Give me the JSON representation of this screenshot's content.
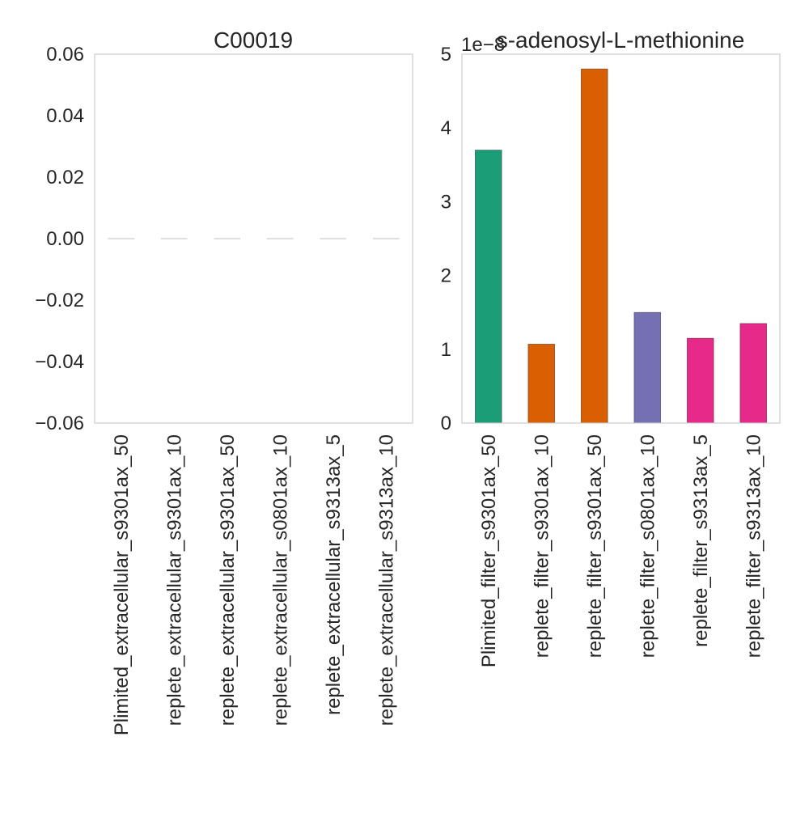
{
  "chart_data": [
    {
      "type": "bar",
      "title": "C00019",
      "categories": [
        "Plimited_extracellular_s9301ax_50",
        "replete_extracellular_s9301ax_10",
        "replete_extracellular_s9301ax_50",
        "replete_extracellular_s0801ax_10",
        "replete_extracellular_s9313ax_5",
        "replete_extracellular_s9313ax_10"
      ],
      "values": [
        0,
        0,
        0,
        0,
        0,
        0
      ],
      "ylim": [
        -0.06,
        0.06
      ],
      "yticks": [
        "0.06",
        "0.04",
        "0.02",
        "0.00",
        "−0.02",
        "−0.04",
        "−0.06"
      ],
      "ytick_values": [
        0.06,
        0.04,
        0.02,
        0.0,
        -0.02,
        -0.04,
        -0.06
      ],
      "xlabel": "",
      "ylabel": "",
      "grid": false,
      "bar_color": "#cccccc"
    },
    {
      "type": "bar",
      "title": "s-adenosyl-L-methionine",
      "offset_label": "1e−8",
      "categories": [
        "Plimited_filter_s9301ax_50",
        "replete_filter_s9301ax_10",
        "replete_filter_s9301ax_50",
        "replete_filter_s0801ax_10",
        "replete_filter_s9313ax_5",
        "replete_filter_s9313ax_10"
      ],
      "values": [
        3.7,
        1.07,
        4.8,
        1.5,
        1.15,
        1.35
      ],
      "ylim": [
        0,
        5
      ],
      "yticks": [
        "5",
        "4",
        "3",
        "2",
        "1",
        "0"
      ],
      "ytick_values": [
        5,
        4,
        3,
        2,
        1,
        0
      ],
      "xlabel": "",
      "ylabel": "",
      "grid": false,
      "colors": [
        "#1b9e77",
        "#d95f02",
        "#d95f02",
        "#7570b3",
        "#e7298a",
        "#e7298a"
      ]
    }
  ]
}
